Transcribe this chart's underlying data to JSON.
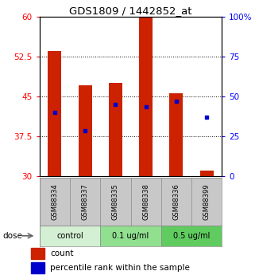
{
  "title": "GDS1809 / 1442852_at",
  "samples": [
    "GSM88334",
    "GSM88337",
    "GSM88335",
    "GSM88338",
    "GSM88336",
    "GSM88399"
  ],
  "bar_values": [
    53.5,
    47.0,
    47.5,
    60.0,
    45.5,
    31.0
  ],
  "bar_bottom": 30,
  "percentile_values": [
    42.0,
    38.5,
    43.5,
    43.0,
    44.0,
    41.0
  ],
  "bar_color": "#cc2200",
  "dot_color": "#0000cc",
  "ylim": [
    30,
    60
  ],
  "y2lim": [
    0,
    100
  ],
  "yticks": [
    30,
    37.5,
    45,
    52.5,
    60
  ],
  "y2ticks": [
    0,
    25,
    50,
    75,
    100
  ],
  "ytick_labels": [
    "30",
    "37.5",
    "45",
    "52.5",
    "60"
  ],
  "y2tick_labels": [
    "0",
    "25",
    "50",
    "75",
    "100%"
  ],
  "groups": [
    {
      "label": "control",
      "span": [
        0,
        2
      ],
      "color": "#d4f0d4"
    },
    {
      "label": "0.1 ug/ml",
      "span": [
        2,
        4
      ],
      "color": "#90e090"
    },
    {
      "label": "0.5 ug/ml",
      "span": [
        4,
        6
      ],
      "color": "#60cc60"
    }
  ],
  "dose_label": "dose",
  "legend_count_label": "count",
  "legend_pct_label": "percentile rank within the sample",
  "plot_bg": "#ffffff",
  "sample_bg": "#c8c8c8",
  "bar_width": 0.45
}
